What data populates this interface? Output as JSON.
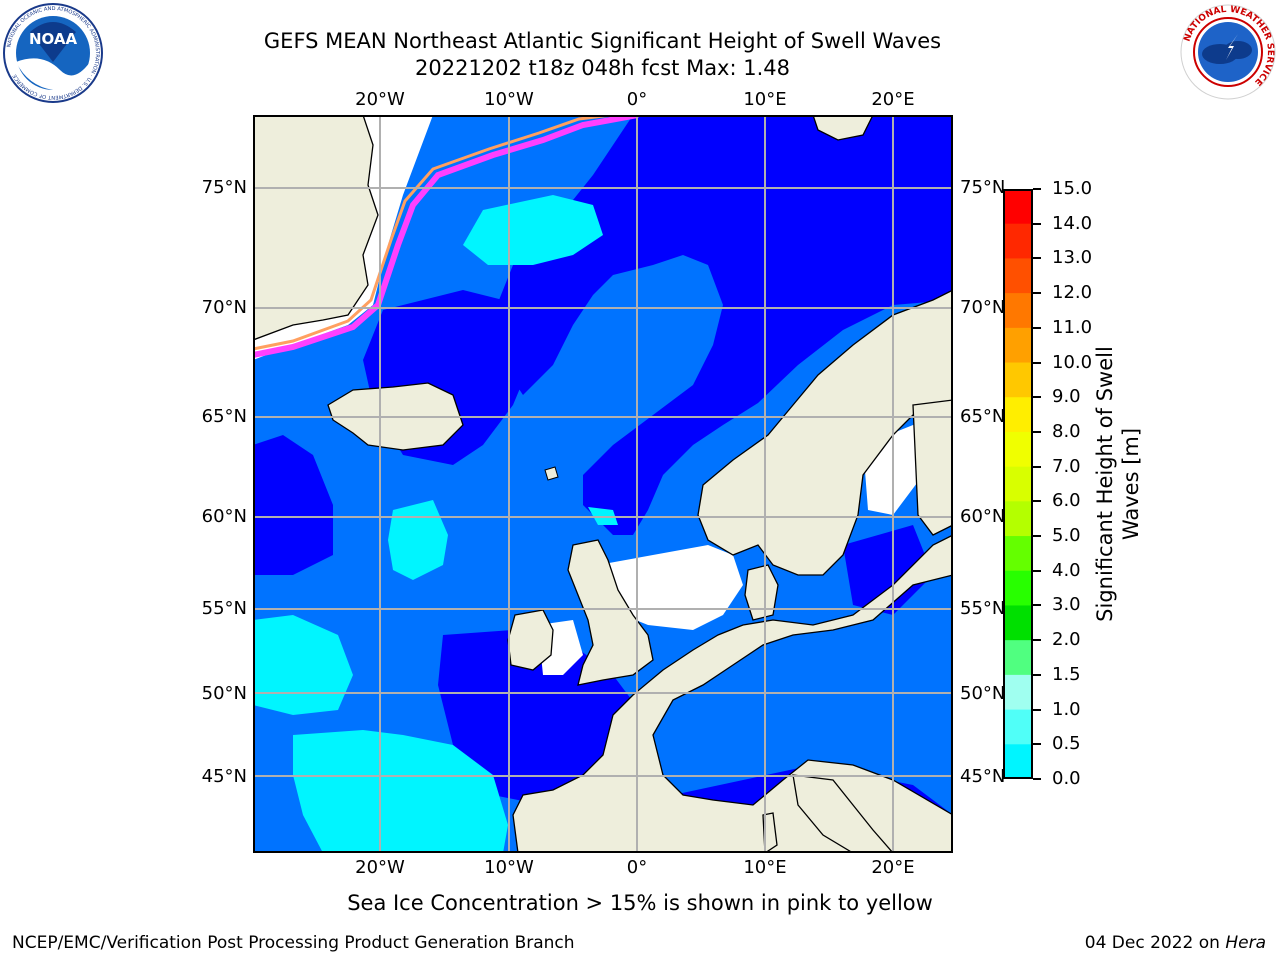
{
  "header": {
    "title_line1": "GEFS MEAN Northeast Atlantic Significant Height of Swell Waves",
    "title_line2": "20221202 t18z 048h fcst   Max: 1.48"
  },
  "logos": {
    "noaa_text": "NOAA",
    "noaa_ring_text": "NATIONAL OCEANIC AND ATMOSPHERIC ADMINISTRATION · U.S. DEPARTMENT OF COMMERCE",
    "nws_ring_text": "NATIONAL WEATHER SERVICE"
  },
  "map": {
    "lon_labels": [
      "20°W",
      "10°W",
      "0°",
      "10°E",
      "20°E"
    ],
    "lat_labels": [
      "75°N",
      "70°N",
      "65°N",
      "60°N",
      "55°N",
      "50°N",
      "45°N"
    ],
    "colors": {
      "ocean_low": "#0000ff",
      "ocean_mid": "#0073ff",
      "ocean_high": "#00f5ff",
      "land": "#eeeedc",
      "no_data": "#ffffff",
      "ice_edge": "#ff40ff",
      "ice_inner": "#ffa060",
      "grid": "#b0b0b0"
    }
  },
  "colorbar": {
    "ticks": [
      "15.0",
      "14.0",
      "13.0",
      "12.0",
      "11.0",
      "10.0",
      "9.0",
      "8.0",
      "7.0",
      "6.0",
      "5.0",
      "4.0",
      "3.0",
      "2.0",
      "1.5",
      "1.0",
      "0.5",
      "0.0"
    ],
    "label": "Significant Height of Swell Waves [m]",
    "label_line1": "Significant Height of Swell",
    "label_line2": "Waves [m]",
    "segment_colors": [
      "#ff0000",
      "#ff2800",
      "#ff5000",
      "#ff7800",
      "#ffa000",
      "#ffc800",
      "#ffee00",
      "#f0ff00",
      "#d8ff00",
      "#b4ff00",
      "#64ff00",
      "#28ff00",
      "#00e000",
      "#50ff80",
      "#a0fff0",
      "#50fff8",
      "#00f5ff",
      "#0073ff",
      "#0000ff"
    ]
  },
  "footer": {
    "note": "Sea Ice Concentration > 15% is shown in pink to yellow",
    "left": "NCEP/EMC/Verification Post Processing Product Generation Branch",
    "right_prefix": "04 Dec 2022 on ",
    "right_host": "Hera"
  }
}
